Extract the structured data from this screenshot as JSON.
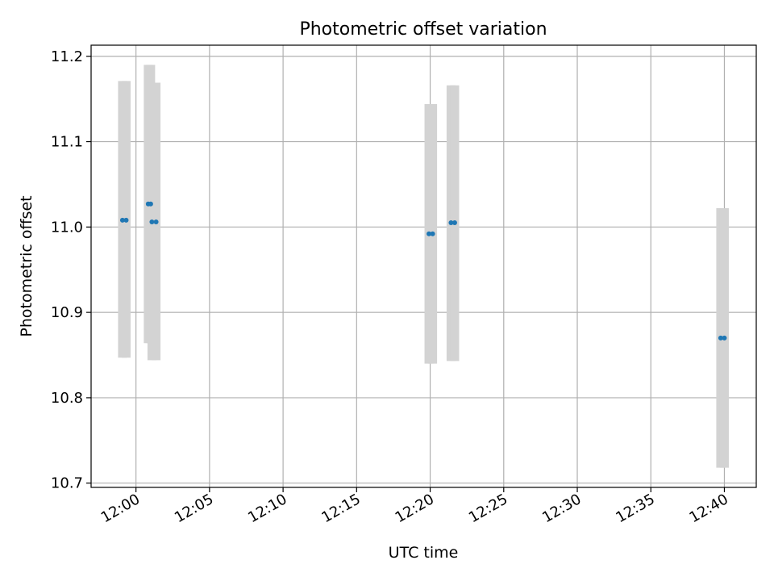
{
  "chart_data": {
    "type": "scatter",
    "title": "Photometric offset variation",
    "xlabel": "UTC time",
    "ylabel": "Photometric offset",
    "x_ticks": [
      "12:00",
      "12:05",
      "12:10",
      "12:15",
      "12:20",
      "12:25",
      "12:30",
      "12:35",
      "12:40"
    ],
    "y_ticks": [
      "10.7",
      "10.8",
      "10.9",
      "11.0",
      "11.1",
      "11.2"
    ],
    "xlim": [
      "11:56:57",
      "12:42:10"
    ],
    "ylim": [
      10.695,
      11.213
    ],
    "grid": true,
    "marker_color": "#1f77b4",
    "errorbar_color": "#d3d3d3",
    "series": [
      {
        "points": [
          {
            "x": "11:59:05",
            "y": 11.008,
            "y_low": 10.847,
            "y_high": 11.171
          },
          {
            "x": "11:59:20",
            "y": 11.008,
            "y_low": 10.847,
            "y_high": 11.171
          },
          {
            "x": "12:00:50",
            "y": 11.027,
            "y_low": 10.864,
            "y_high": 11.19
          },
          {
            "x": "12:01:00",
            "y": 11.027,
            "y_low": 10.864,
            "y_high": 11.19
          },
          {
            "x": "12:01:05",
            "y": 11.006,
            "y_low": 10.844,
            "y_high": 11.169
          },
          {
            "x": "12:01:22",
            "y": 11.006,
            "y_low": 10.844,
            "y_high": 11.169
          },
          {
            "x": "12:19:55",
            "y": 10.992,
            "y_low": 10.84,
            "y_high": 11.144
          },
          {
            "x": "12:20:10",
            "y": 10.992,
            "y_low": 10.84,
            "y_high": 11.144
          },
          {
            "x": "12:21:25",
            "y": 11.005,
            "y_low": 10.843,
            "y_high": 11.166
          },
          {
            "x": "12:21:40",
            "y": 11.005,
            "y_low": 10.843,
            "y_high": 11.166
          },
          {
            "x": "12:39:45",
            "y": 10.87,
            "y_low": 10.718,
            "y_high": 11.022
          },
          {
            "x": "12:40:00",
            "y": 10.87,
            "y_low": 10.718,
            "y_high": 11.022
          }
        ]
      }
    ]
  }
}
